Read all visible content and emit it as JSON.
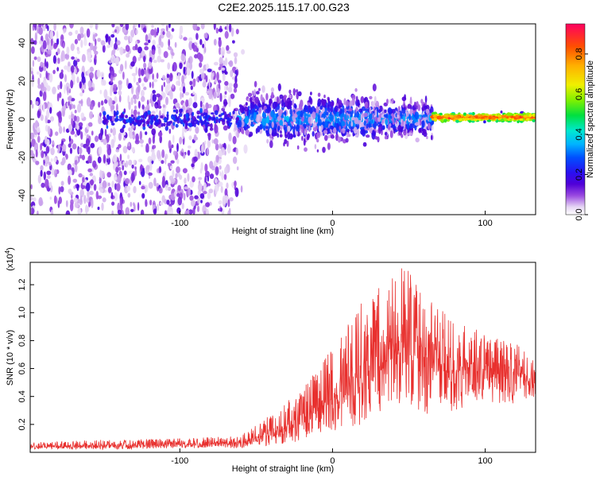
{
  "title": "C2E2.2025.115.17.00.G23",
  "chart_data": [
    {
      "type": "heatmap",
      "xlabel": "Height of straight line (km)",
      "ylabel": "Frequency (Hz)",
      "xlim": [
        -198,
        133
      ],
      "ylim": [
        -50,
        50
      ],
      "xticks": [
        -100,
        0,
        100
      ],
      "yticks": [
        -40,
        -20,
        0,
        20,
        40
      ],
      "colorbar": {
        "label": "Normalized spectral amplitude",
        "ticks": [
          0.0,
          0.2,
          0.4,
          0.6,
          0.8
        ],
        "range": [
          0,
          0.95
        ],
        "colormap": [
          "#ffffff",
          "#e8d8f5",
          "#9a4ae0",
          "#5a00d0",
          "#3000e0",
          "#0040ff",
          "#00b0ff",
          "#00e8d0",
          "#00e040",
          "#80f000",
          "#ffff00",
          "#ffb000",
          "#ff5000",
          "#ff0060"
        ]
      },
      "features": [
        {
          "region": "x -198 to -62",
          "description_values": {
            "noise_spread_hz": 50,
            "amplitude": 0.1
          }
        },
        {
          "region": "x -62 to 65",
          "description_values": {
            "band_center_hz": 0,
            "band_halfwidth_hz": 8,
            "amplitude": 0.25
          }
        },
        {
          "region": "x 65 to 133",
          "description_values": {
            "band_center_hz": 1,
            "band_halfwidth_hz": 2,
            "amplitude": 0.9
          }
        }
      ],
      "grid": false
    },
    {
      "type": "line",
      "xlabel": "Height of straight line (km)",
      "ylabel": "SNR (10 * v/v)",
      "y_multiplier": "(x10^4)",
      "xlim": [
        -198,
        133
      ],
      "ylim": [
        0,
        1.36
      ],
      "xticks": [
        -100,
        0,
        100
      ],
      "yticks": [
        0.2,
        0.4,
        0.6,
        0.8,
        1.0,
        1.2
      ],
      "series": [
        {
          "color": "#e8302e",
          "envelope": {
            "x": [
              -198,
              -150,
              -100,
              -60,
              -40,
              -20,
              0,
              20,
              40,
              50,
              60,
              80,
              100,
              120,
              133
            ],
            "lower": [
              0.02,
              0.02,
              0.03,
              0.03,
              0.05,
              0.08,
              0.15,
              0.2,
              0.3,
              0.3,
              0.25,
              0.3,
              0.35,
              0.35,
              0.4
            ],
            "upper": [
              0.07,
              0.09,
              0.1,
              0.12,
              0.28,
              0.45,
              0.75,
              1.1,
              1.3,
              1.35,
              1.15,
              0.95,
              0.85,
              0.8,
              0.65
            ],
            "mean": [
              0.04,
              0.05,
              0.06,
              0.07,
              0.14,
              0.25,
              0.4,
              0.6,
              0.75,
              0.8,
              0.7,
              0.62,
              0.6,
              0.58,
              0.5
            ]
          }
        }
      ],
      "grid": false
    }
  ]
}
